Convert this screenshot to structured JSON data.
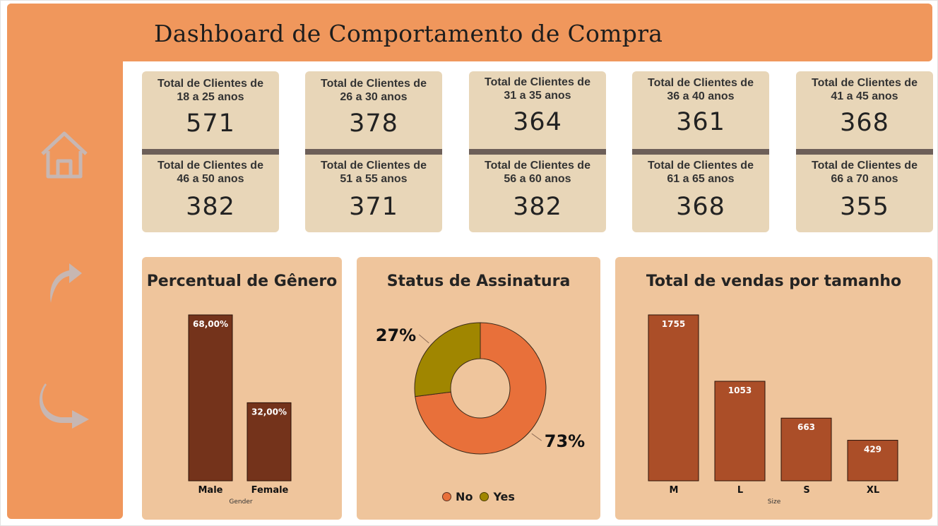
{
  "header": {
    "title": "Dashboard de Comportamento de Compra"
  },
  "sidebar": {
    "icons": [
      "home-icon",
      "forward-arrow-icon",
      "back-arrow-icon"
    ]
  },
  "colors": {
    "header_bg": "#f0975c",
    "kpi_bg": "#e8d6b8",
    "kpi_separator": "#6d5f58",
    "panel_bg": "#efc59c",
    "gender_bar": "#74331b",
    "size_bar": "#ab4e28",
    "donut_no": "#e8703a",
    "donut_yes": "#a08600",
    "nav_icon": "#c7b7b3"
  },
  "kpis": [
    {
      "top": {
        "label": "Total de Clientes de 18 a 25 anos",
        "value": "571"
      },
      "bottom": {
        "label": "Total de Clientes de 46 a 50 anos",
        "value": "382"
      }
    },
    {
      "top": {
        "label": "Total de Clientes de 26 a 30 anos",
        "value": "378"
      },
      "bottom": {
        "label": "Total de Clientes de 51 a 55 anos",
        "value": "371"
      }
    },
    {
      "top": {
        "label": "Total de Clientes de 31 a 35 anos",
        "value": "364"
      },
      "bottom": {
        "label": "Total de Clientes de 56 a 60 anos",
        "value": "382"
      }
    },
    {
      "top": {
        "label": "Total de Clientes de 36 a 40 anos",
        "value": "361"
      },
      "bottom": {
        "label": "Total de Clientes de 61 a 65 anos",
        "value": "368"
      }
    },
    {
      "top": {
        "label": "Total de Clientes de 41 a 45 anos",
        "value": "368"
      },
      "bottom": {
        "label": "Total de Clientes de 66 a 70 anos",
        "value": "355"
      }
    }
  ],
  "chart_data": [
    {
      "type": "bar",
      "title": "Percentual de Gênero",
      "xlabel": "Gender",
      "ylabel": "",
      "categories": [
        "Male",
        "Female"
      ],
      "values": [
        68.0,
        32.0
      ],
      "data_labels": [
        "68,00%",
        "32,00%"
      ],
      "ylim": [
        0,
        68
      ],
      "grid": false
    },
    {
      "type": "pie",
      "title": "Status de Assinatura",
      "donut": true,
      "categories": [
        "No",
        "Yes"
      ],
      "values": [
        73,
        27
      ],
      "data_labels": [
        "73%",
        "27%"
      ],
      "legend": {
        "position": "bottom",
        "items": [
          "No",
          "Yes"
        ]
      }
    },
    {
      "type": "bar",
      "title": "Total de vendas por tamanho",
      "xlabel": "Size",
      "ylabel": "",
      "categories": [
        "M",
        "L",
        "S",
        "XL"
      ],
      "values": [
        1755,
        1053,
        663,
        429
      ],
      "data_labels": [
        "1755",
        "1053",
        "663",
        "429"
      ],
      "ylim": [
        0,
        1755
      ],
      "grid": false
    }
  ]
}
